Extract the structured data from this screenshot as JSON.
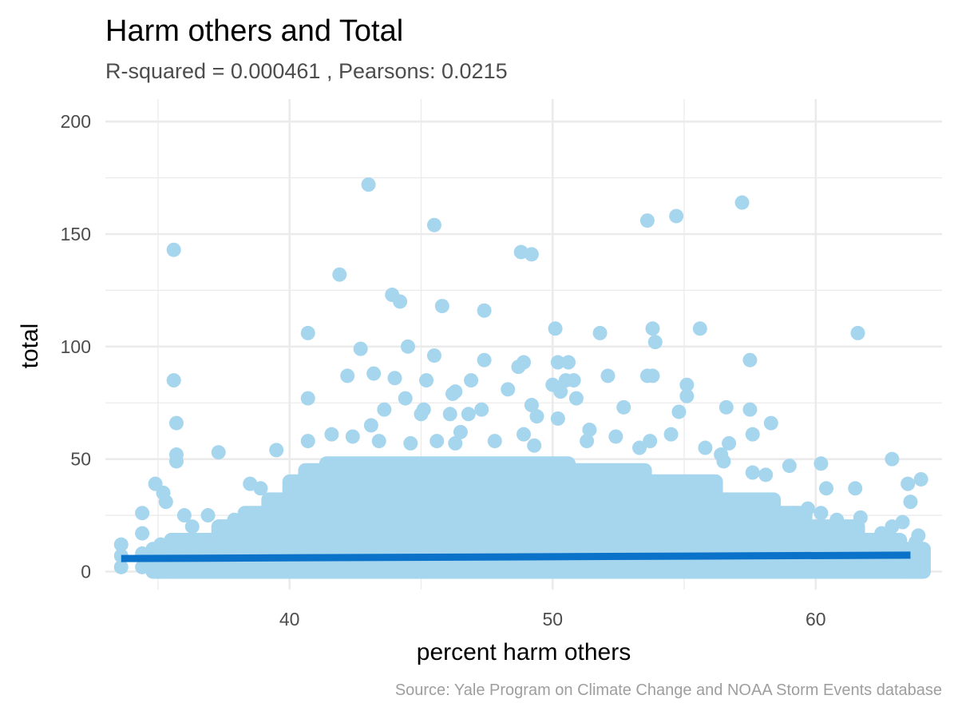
{
  "chart_data": {
    "type": "scatter",
    "title": "Harm others and Total",
    "subtitle": "R-squared =  0.000461 , Pearsons: 0.0215",
    "xlabel": "percent harm others",
    "ylabel": "total",
    "caption": "Source: Yale Program on Climate Change and NOAA Storm Events database",
    "xlim": [
      33,
      64.8
    ],
    "ylim": [
      -8,
      210
    ],
    "x_ticks": [
      40,
      50,
      60
    ],
    "y_ticks": [
      0,
      50,
      100,
      150,
      200
    ],
    "x_tick_labels": [
      "40",
      "50",
      "60"
    ],
    "y_tick_labels": [
      "0",
      "50",
      "100",
      "150",
      "200"
    ],
    "grid": true,
    "legend": "none",
    "point_color": "#a6d5ee",
    "line_color": "#0b72c9",
    "fit_line": {
      "x": [
        33.6,
        63.6
      ],
      "y": [
        5.8,
        7.3
      ]
    },
    "points": [
      [
        43.0,
        172
      ],
      [
        57.2,
        164
      ],
      [
        54.7,
        158
      ],
      [
        53.6,
        156
      ],
      [
        45.5,
        154
      ],
      [
        35.6,
        143
      ],
      [
        48.8,
        142
      ],
      [
        49.2,
        141
      ],
      [
        41.9,
        132
      ],
      [
        43.9,
        123
      ],
      [
        44.2,
        120
      ],
      [
        45.8,
        118
      ],
      [
        47.4,
        116
      ],
      [
        40.7,
        106
      ],
      [
        51.8,
        106
      ],
      [
        61.6,
        106
      ],
      [
        50.1,
        108
      ],
      [
        53.8,
        108
      ],
      [
        55.6,
        108
      ],
      [
        53.9,
        102
      ],
      [
        42.7,
        99
      ],
      [
        44.5,
        100
      ],
      [
        45.5,
        96
      ],
      [
        57.5,
        94
      ],
      [
        47.4,
        94
      ],
      [
        48.9,
        93
      ],
      [
        48.7,
        91
      ],
      [
        50.2,
        93
      ],
      [
        50.6,
        93
      ],
      [
        42.2,
        87
      ],
      [
        43.2,
        88
      ],
      [
        44.0,
        86
      ],
      [
        45.2,
        85
      ],
      [
        46.9,
        85
      ],
      [
        50.5,
        85
      ],
      [
        50.8,
        85
      ],
      [
        52.1,
        87
      ],
      [
        53.6,
        87
      ],
      [
        53.8,
        87
      ],
      [
        35.6,
        85
      ],
      [
        46.3,
        80
      ],
      [
        48.3,
        81
      ],
      [
        50.0,
        83
      ],
      [
        55.1,
        83
      ],
      [
        55.1,
        78
      ],
      [
        40.7,
        77
      ],
      [
        44.4,
        77
      ],
      [
        46.2,
        79
      ],
      [
        50.3,
        80
      ],
      [
        43.6,
        72
      ],
      [
        45.1,
        72
      ],
      [
        45.0,
        70
      ],
      [
        46.1,
        70
      ],
      [
        46.8,
        70
      ],
      [
        47.3,
        72
      ],
      [
        49.2,
        74
      ],
      [
        49.4,
        69
      ],
      [
        50.2,
        68
      ],
      [
        50.9,
        77
      ],
      [
        51.4,
        63
      ],
      [
        52.7,
        73
      ],
      [
        54.8,
        71
      ],
      [
        56.6,
        73
      ],
      [
        57.5,
        72
      ],
      [
        58.3,
        66
      ],
      [
        35.7,
        66
      ],
      [
        40.7,
        58
      ],
      [
        41.6,
        61
      ],
      [
        42.4,
        60
      ],
      [
        43.1,
        65
      ],
      [
        43.4,
        58
      ],
      [
        44.6,
        57
      ],
      [
        45.6,
        58
      ],
      [
        46.3,
        57
      ],
      [
        46.5,
        62
      ],
      [
        47.8,
        58
      ],
      [
        48.9,
        61
      ],
      [
        49.3,
        56
      ],
      [
        51.3,
        58
      ],
      [
        52.4,
        60
      ],
      [
        53.3,
        55
      ],
      [
        53.7,
        58
      ],
      [
        54.5,
        61
      ],
      [
        55.8,
        55
      ],
      [
        56.4,
        52
      ],
      [
        56.7,
        57
      ],
      [
        57.6,
        61
      ],
      [
        37.3,
        53
      ],
      [
        35.7,
        52
      ],
      [
        35.7,
        49
      ],
      [
        39.5,
        54
      ],
      [
        59.0,
        47
      ],
      [
        60.2,
        48
      ],
      [
        62.9,
        50
      ],
      [
        34.9,
        39
      ],
      [
        35.2,
        35
      ],
      [
        35.3,
        31
      ],
      [
        36.0,
        25
      ],
      [
        36.9,
        25
      ],
      [
        38.5,
        39
      ],
      [
        38.9,
        37
      ],
      [
        39.4,
        32
      ],
      [
        56.5,
        49
      ],
      [
        57.6,
        44
      ],
      [
        58.1,
        43
      ],
      [
        58.4,
        30
      ],
      [
        59.1,
        26
      ],
      [
        59.7,
        28
      ],
      [
        60.2,
        26
      ],
      [
        60.4,
        37
      ],
      [
        60.8,
        23
      ],
      [
        61.5,
        37
      ],
      [
        61.7,
        24
      ],
      [
        62.5,
        17
      ],
      [
        62.9,
        20
      ],
      [
        63.3,
        22
      ],
      [
        63.5,
        39
      ],
      [
        63.6,
        31
      ],
      [
        64.0,
        41
      ],
      [
        63.9,
        16
      ],
      [
        33.6,
        12
      ],
      [
        33.6,
        7
      ],
      [
        33.6,
        2
      ],
      [
        34.4,
        26
      ],
      [
        34.4,
        17
      ],
      [
        34.4,
        8
      ],
      [
        34.4,
        2
      ],
      [
        35.1,
        12
      ],
      [
        35.4,
        7
      ],
      [
        35.8,
        14
      ],
      [
        36.3,
        20
      ],
      [
        36.7,
        14
      ],
      [
        37.4,
        20
      ],
      [
        37.9,
        23
      ],
      [
        62.2,
        12
      ],
      [
        63.1,
        10
      ],
      [
        63.8,
        13
      ]
    ],
    "dense_region": [
      [
        34.8,
        0,
        64.1,
        10
      ],
      [
        35.5,
        0,
        63.2,
        14
      ],
      [
        37.3,
        0,
        61.6,
        20
      ],
      [
        38.3,
        0,
        59.6,
        26
      ],
      [
        39.2,
        0,
        58.4,
        32
      ],
      [
        40.0,
        0,
        56.2,
        40
      ],
      [
        40.6,
        0,
        53.5,
        45
      ],
      [
        41.4,
        0,
        50.6,
        48
      ]
    ]
  }
}
